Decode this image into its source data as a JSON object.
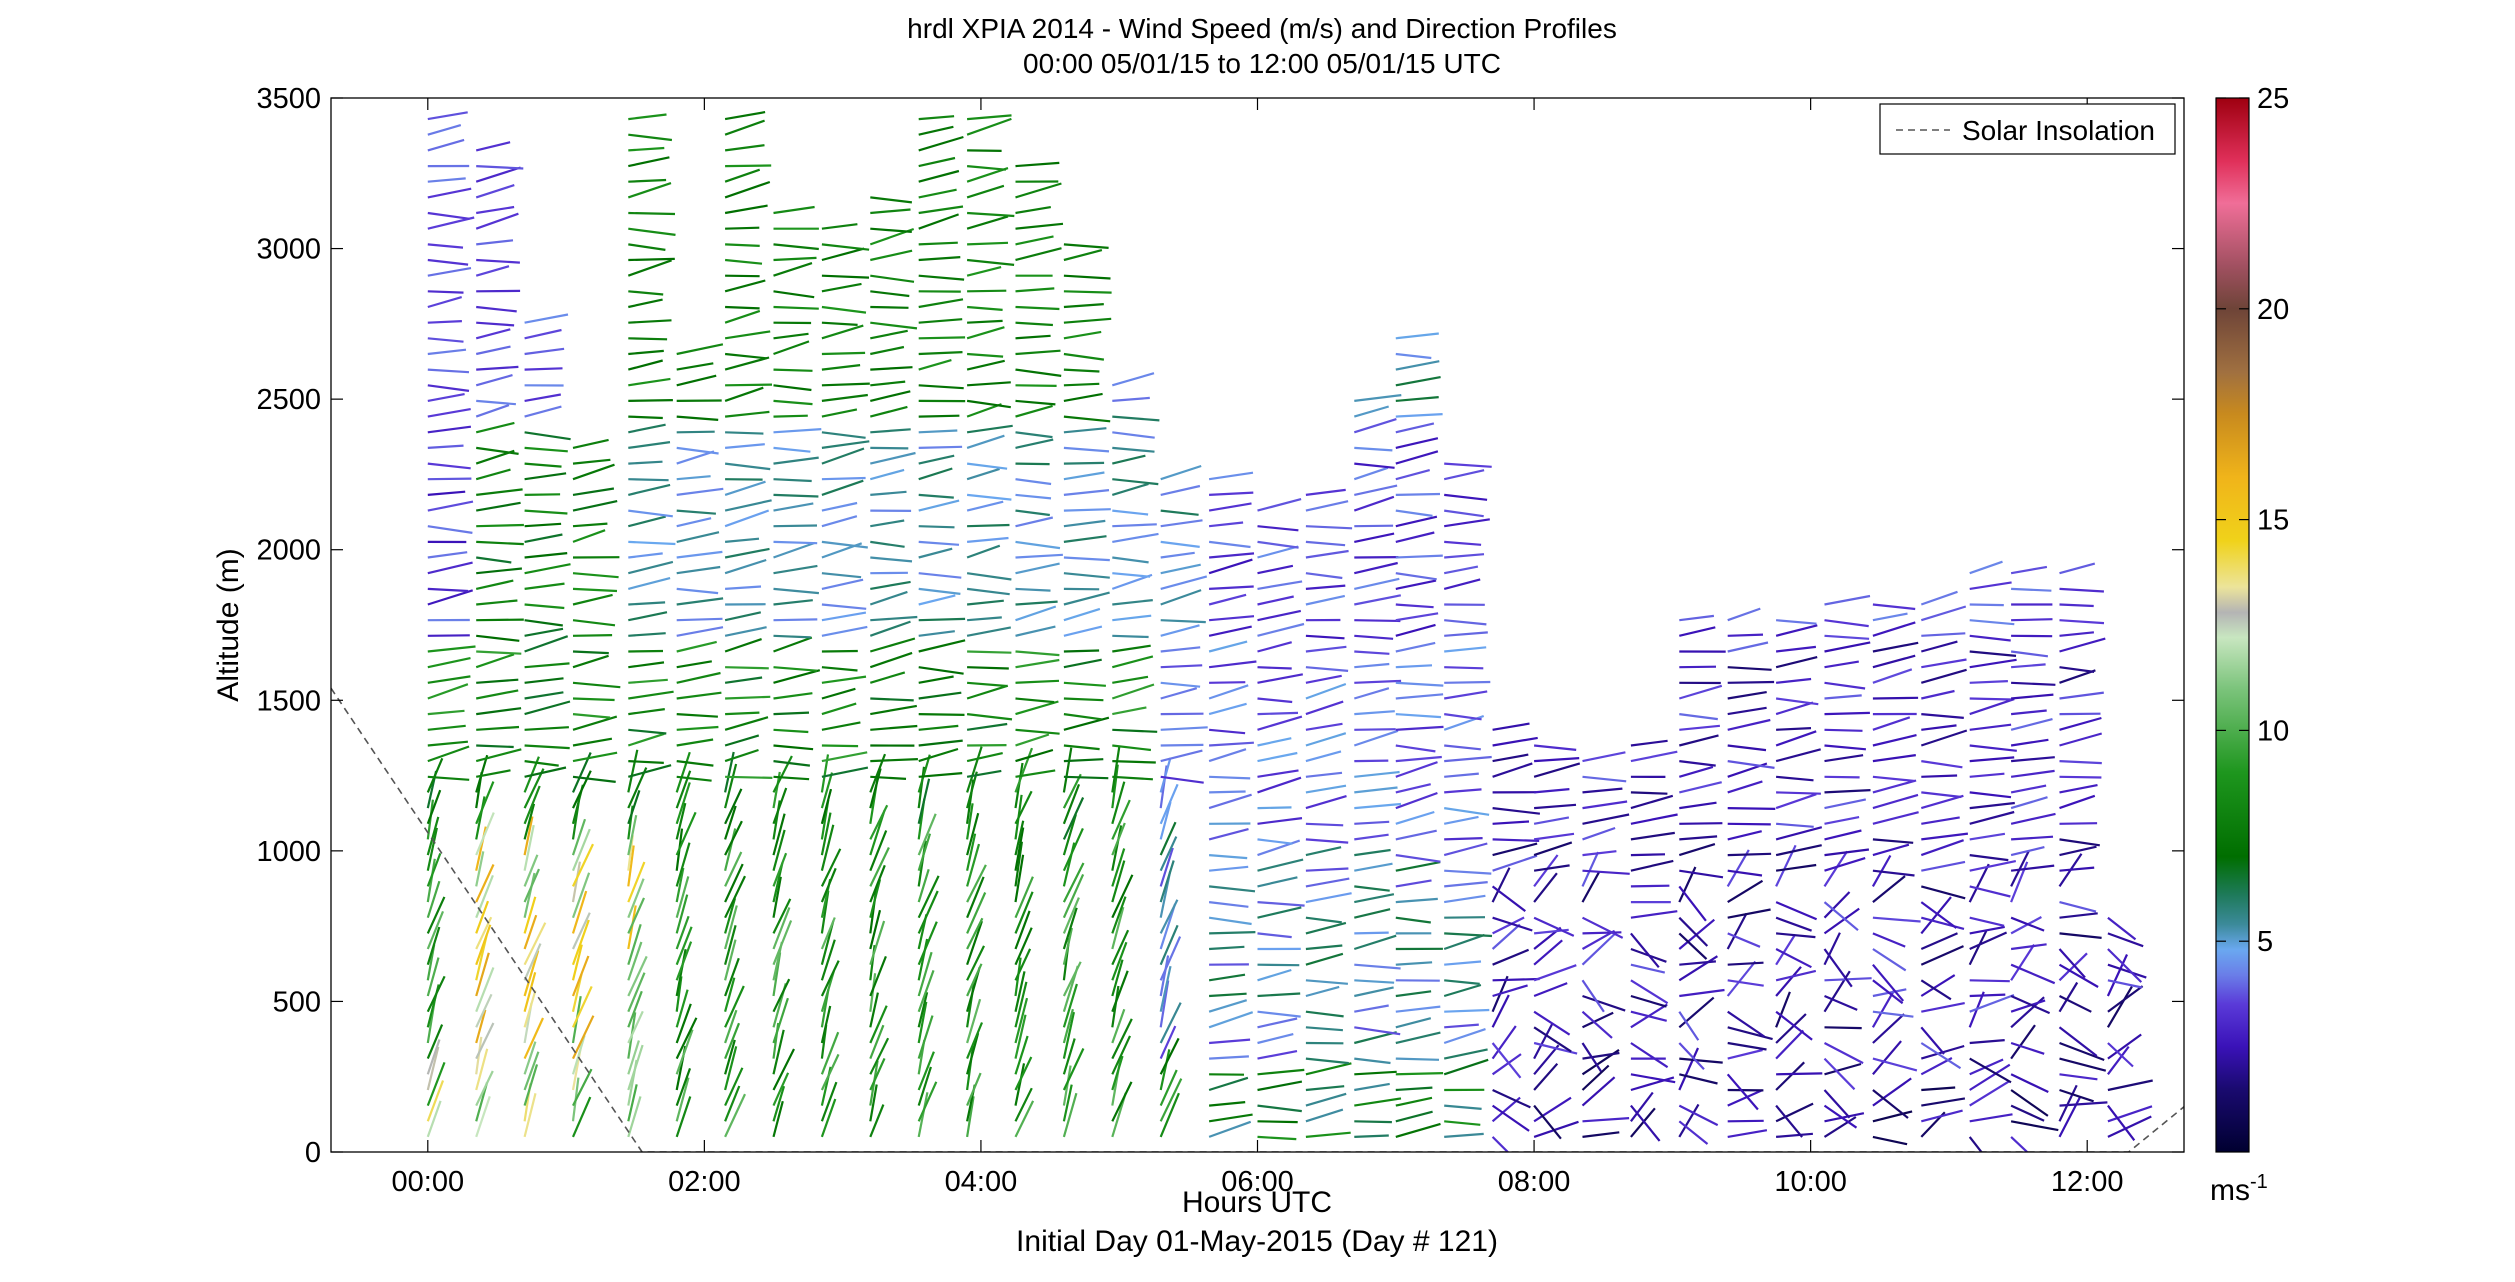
{
  "chart_data": {
    "type": "scatter",
    "subtype": "wind-barb-profile",
    "title": "hrdl XPIA 2014 - Wind Speed (m/s) and Direction Profiles",
    "subtitle": "00:00 05/01/15 to 12:00 05/01/15  UTC",
    "xlabel": "Hours UTC",
    "xlabel2": "Initial Day 01-May-2015 (Day # 121)",
    "ylabel": "Altitude (m)",
    "xlim": [
      -0.7,
      12.7
    ],
    "ylim": [
      0,
      3500
    ],
    "x_ticks": [
      0,
      2,
      4,
      6,
      8,
      10,
      12
    ],
    "x_tick_labels": [
      "00:00",
      "02:00",
      "04:00",
      "06:00",
      "08:00",
      "10:00",
      "12:00"
    ],
    "y_ticks": [
      0,
      500,
      1000,
      1500,
      2000,
      2500,
      3000,
      3500
    ],
    "y_tick_labels": [
      "0",
      "500",
      "1000",
      "1500",
      "2000",
      "2500",
      "3000",
      "3500"
    ],
    "grid": false,
    "legend": {
      "placement": "top-right",
      "entries": [
        {
          "label": "Solar Insolation",
          "style": "dashed",
          "color": "#555555"
        }
      ]
    },
    "colorbar": {
      "unit_label": "ms",
      "unit_superscript": "-1",
      "range": [
        0,
        25
      ],
      "ticks": [
        5,
        10,
        15,
        20,
        25
      ],
      "tick_labels": [
        "5",
        "10",
        "15",
        "20",
        "25"
      ],
      "stops": [
        [
          0,
          "#000030"
        ],
        [
          1.5,
          "#1a0a70"
        ],
        [
          2.5,
          "#3a12b8"
        ],
        [
          3.5,
          "#5a3ad8"
        ],
        [
          4.2,
          "#6a7ee8"
        ],
        [
          4.8,
          "#6aa8f0"
        ],
        [
          5.4,
          "#3c8a9a"
        ],
        [
          6.1,
          "#1e7a5a"
        ],
        [
          7,
          "#006e00"
        ],
        [
          9,
          "#1e961e"
        ],
        [
          11,
          "#7cc47c"
        ],
        [
          12.2,
          "#c8e6c0"
        ],
        [
          12.8,
          "#b4b4b4"
        ],
        [
          13.4,
          "#ece49a"
        ],
        [
          14.5,
          "#f0d21a"
        ],
        [
          16,
          "#f0b41a"
        ],
        [
          17.5,
          "#c88a1e"
        ],
        [
          18.5,
          "#a07040"
        ],
        [
          20,
          "#6e4438"
        ],
        [
          21,
          "#a05060"
        ],
        [
          22.5,
          "#f06e98"
        ],
        [
          23.5,
          "#e0305a"
        ],
        [
          25,
          "#9e0010"
        ]
      ]
    },
    "solar_insolation": {
      "x": [
        -0.7,
        1.55,
        12.3,
        12.7
      ],
      "y": [
        1540,
        0,
        0,
        150
      ]
    },
    "profiles": [
      {
        "t": 0.0,
        "top": 3460,
        "bottom": 50
      },
      {
        "t": 0.35,
        "top": 3360,
        "bottom": 50
      },
      {
        "t": 0.7,
        "top": 2780,
        "bottom": 50
      },
      {
        "t": 1.05,
        "top": 2360,
        "bottom": 50
      },
      {
        "t": 1.45,
        "top": 3460,
        "bottom": 50
      },
      {
        "t": 1.8,
        "top": 2670,
        "bottom": 50
      },
      {
        "t": 2.15,
        "top": 3460,
        "bottom": 50
      },
      {
        "t": 2.5,
        "top": 3150,
        "bottom": 50
      },
      {
        "t": 2.85,
        "top": 3080,
        "bottom": 50
      },
      {
        "t": 3.2,
        "top": 3220,
        "bottom": 50
      },
      {
        "t": 3.55,
        "top": 3470,
        "bottom": 50
      },
      {
        "t": 3.9,
        "top": 3460,
        "bottom": 50
      },
      {
        "t": 4.25,
        "top": 3280,
        "bottom": 50
      },
      {
        "t": 4.6,
        "top": 3050,
        "bottom": 50
      },
      {
        "t": 4.95,
        "top": 2560,
        "bottom": 50
      },
      {
        "t": 5.3,
        "top": 2270,
        "bottom": 50
      },
      {
        "t": 5.65,
        "top": 2270,
        "bottom": 50
      },
      {
        "t": 6.0,
        "top": 2140,
        "bottom": 50
      },
      {
        "t": 6.35,
        "top": 2220,
        "bottom": 50
      },
      {
        "t": 6.7,
        "top": 2520,
        "bottom": 50
      },
      {
        "t": 7.0,
        "top": 2750,
        "bottom": 50
      },
      {
        "t": 7.35,
        "top": 2320,
        "bottom": 50
      },
      {
        "t": 7.7,
        "top": 1440,
        "bottom": 50
      },
      {
        "t": 8.0,
        "top": 1390,
        "bottom": 50
      },
      {
        "t": 8.35,
        "top": 1300,
        "bottom": 50
      },
      {
        "t": 8.7,
        "top": 1360,
        "bottom": 50
      },
      {
        "t": 9.05,
        "top": 1780,
        "bottom": 50
      },
      {
        "t": 9.4,
        "top": 1800,
        "bottom": 50
      },
      {
        "t": 9.75,
        "top": 1790,
        "bottom": 50
      },
      {
        "t": 10.1,
        "top": 1850,
        "bottom": 50
      },
      {
        "t": 10.45,
        "top": 1830,
        "bottom": 50
      },
      {
        "t": 10.8,
        "top": 1840,
        "bottom": 50
      },
      {
        "t": 11.15,
        "top": 1950,
        "bottom": 50
      },
      {
        "t": 11.45,
        "top": 1950,
        "bottom": 50
      },
      {
        "t": 11.8,
        "top": 1960,
        "bottom": 50
      },
      {
        "t": 12.15,
        "top": 790,
        "bottom": 50
      }
    ]
  }
}
